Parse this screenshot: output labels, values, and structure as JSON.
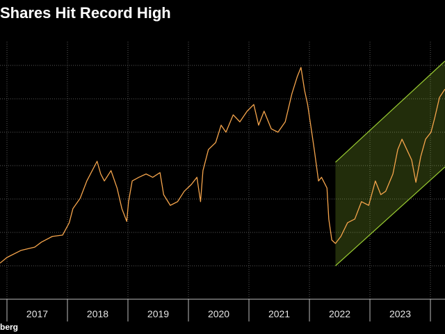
{
  "chart_data": {
    "type": "line",
    "title": "Shares Hit Record High",
    "source": "berg",
    "x_labels": [
      "2017",
      "2018",
      "2019",
      "2020",
      "2021",
      "2022",
      "2023"
    ],
    "xlim": [
      2016.885,
      2024.241
    ],
    "xticks": [
      2017,
      2018,
      2019,
      2020,
      2021,
      2022,
      2023,
      2024
    ],
    "ylim": [
      0,
      8
    ],
    "yticks": [
      1,
      2,
      3,
      4,
      5,
      6,
      7
    ],
    "grid": true,
    "series": [
      {
        "color": "#f6a54c",
        "x": [
          2016.885,
          2017.0,
          2017.23,
          2017.46,
          2017.57,
          2017.75,
          2017.92,
          2018.03,
          2018.09,
          2018.21,
          2018.32,
          2018.49,
          2018.55,
          2018.61,
          2018.72,
          2018.82,
          2018.9,
          2018.98,
          2019.01,
          2019.07,
          2019.18,
          2019.3,
          2019.41,
          2019.53,
          2019.59,
          2019.7,
          2019.82,
          2019.93,
          2020.05,
          2020.14,
          2020.2,
          2020.24,
          2020.33,
          2020.45,
          2020.54,
          2020.62,
          2020.74,
          2020.85,
          2020.97,
          2021.08,
          2021.16,
          2021.25,
          2021.37,
          2021.48,
          2021.6,
          2021.71,
          2021.8,
          2021.86,
          2021.92,
          2021.97,
          2022.03,
          2022.08,
          2022.15,
          2022.2,
          2022.29,
          2022.32,
          2022.37,
          2022.43,
          2022.52,
          2022.63,
          2022.75,
          2022.86,
          2022.98,
          2023.09,
          2023.18,
          2023.26,
          2023.38,
          2023.46,
          2023.53,
          2023.61,
          2023.69,
          2023.76,
          2023.84,
          2023.92,
          2024.01,
          2024.07,
          2024.15,
          2024.24
        ],
        "values": [
          1.08,
          1.25,
          1.46,
          1.56,
          1.71,
          1.88,
          1.92,
          2.29,
          2.71,
          3.02,
          3.54,
          4.13,
          3.75,
          3.54,
          3.85,
          3.33,
          2.71,
          2.33,
          2.92,
          3.54,
          3.65,
          3.75,
          3.65,
          3.79,
          3.13,
          2.81,
          2.92,
          3.23,
          3.44,
          3.65,
          2.92,
          3.85,
          4.48,
          4.69,
          5.21,
          5.0,
          5.52,
          5.31,
          5.63,
          5.83,
          5.21,
          5.63,
          5.1,
          5.0,
          5.31,
          6.15,
          6.67,
          6.94,
          6.25,
          5.83,
          5.1,
          4.48,
          3.54,
          3.65,
          3.33,
          2.4,
          1.77,
          1.67,
          1.88,
          2.29,
          2.4,
          2.92,
          2.81,
          3.54,
          3.13,
          3.23,
          3.75,
          4.48,
          4.79,
          4.48,
          4.17,
          3.5,
          4.27,
          4.79,
          5.0,
          5.42,
          6.04,
          6.29
        ]
      }
    ],
    "channel": {
      "x": [
        2022.43,
        2024.24
      ],
      "upper": [
        4.1,
        7.13
      ],
      "lower": [
        1.0,
        3.96
      ],
      "color": "#9acd32"
    }
  }
}
